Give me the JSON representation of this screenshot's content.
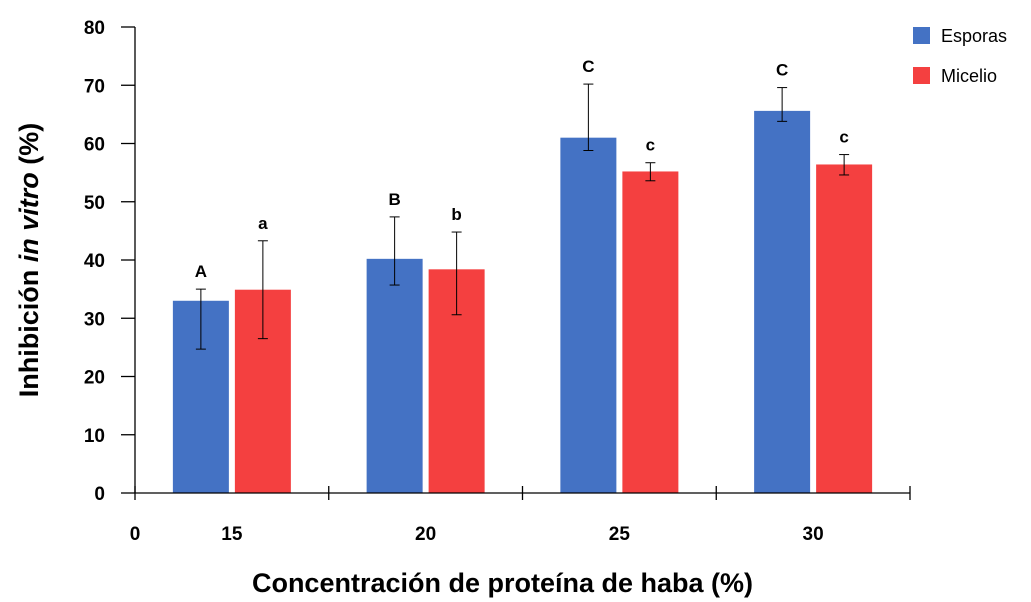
{
  "chart_data": {
    "type": "bar",
    "title": "",
    "xlabel": "Concentración de proteína de haba (%)",
    "ylabel": {
      "prefix": "Inhibición ",
      "italic": "in vitro",
      "suffix": " (%)"
    },
    "x_origin_label": "0",
    "categories": [
      "15",
      "20",
      "25",
      "30"
    ],
    "ylim": [
      0,
      80
    ],
    "yticks": [
      0,
      10,
      20,
      30,
      40,
      50,
      60,
      70,
      80
    ],
    "grid": false,
    "legend_position": "top-right",
    "series": [
      {
        "name": "Esporas",
        "color": "#4472c4",
        "values": [
          33,
          40.2,
          61,
          65.6
        ],
        "err_low": [
          24.7,
          35.7,
          58.8,
          63.8
        ],
        "err_high": [
          35,
          47.4,
          70.2,
          69.6
        ],
        "letters": [
          "A",
          "B",
          "C",
          "C"
        ]
      },
      {
        "name": "Micelio",
        "color": "#f44040",
        "values": [
          34.9,
          38.4,
          55.2,
          56.4
        ],
        "err_low": [
          26.5,
          30.6,
          53.6,
          54.6
        ],
        "err_high": [
          43.3,
          44.8,
          56.7,
          58.1
        ],
        "letters": [
          "a",
          "b",
          "c",
          "c"
        ]
      }
    ]
  }
}
